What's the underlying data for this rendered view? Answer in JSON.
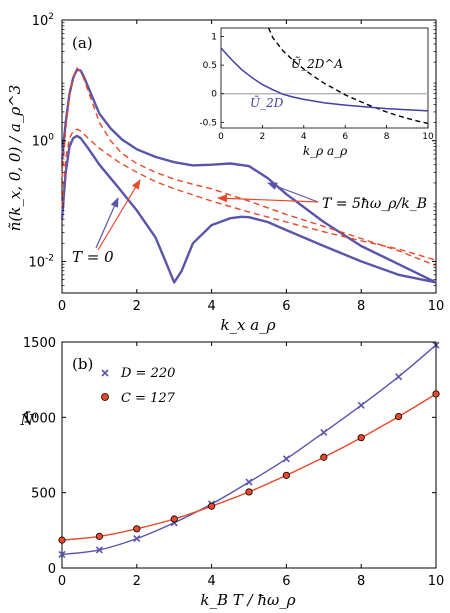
{
  "chart_data": [
    {
      "type": "line",
      "panel_label": "(a)",
      "xlabel": "k_x a_ρ",
      "ylabel": "ñ(k_x, 0, 0) / a_ρ^3",
      "xlim": [
        0,
        10
      ],
      "ylim": [
        0.003,
        100
      ],
      "yscale": "log",
      "xticks": [
        "0",
        "2",
        "4",
        "6",
        "8",
        "10"
      ],
      "yticks": [
        "10^-2",
        "10^0",
        "10^2"
      ],
      "colors": {
        "solid": "#5a55aa",
        "dashed": "#e8492a",
        "arrow_blue": "#5a55aa",
        "arrow_red": "#e8492a"
      },
      "annotations": [
        {
          "text": "T = 0"
        },
        {
          "text": "T = 5ħω_ρ/k_B"
        }
      ],
      "series": [
        {
          "style": "solid",
          "x": [
            0,
            0.1,
            0.2,
            0.3,
            0.4,
            0.5,
            0.6,
            0.8,
            1.0,
            1.3,
            1.6,
            2.0,
            2.5,
            3.0,
            3.5,
            4.0,
            4.5,
            5.0,
            5.5,
            6.0,
            7.0,
            8.0,
            9.0,
            10.0
          ],
          "y": [
            0.5,
            2.0,
            6.0,
            11.0,
            15.0,
            14.5,
            11.0,
            5.5,
            2.8,
            1.6,
            1.05,
            0.72,
            0.54,
            0.44,
            0.39,
            0.4,
            0.42,
            0.38,
            0.24,
            0.13,
            0.045,
            0.018,
            0.009,
            0.0045
          ]
        },
        {
          "style": "solid",
          "x": [
            0,
            0.1,
            0.2,
            0.3,
            0.4,
            0.5,
            0.7,
            1.0,
            1.5,
            2.0,
            2.5,
            2.8,
            3.0,
            3.2,
            3.5,
            4.0,
            4.5,
            4.8,
            5.0,
            5.5,
            6.0,
            7.0,
            8.0,
            9.0,
            10.0
          ],
          "y": [
            0.05,
            0.3,
            0.8,
            1.1,
            1.2,
            1.1,
            0.75,
            0.4,
            0.17,
            0.07,
            0.025,
            0.009,
            0.0045,
            0.007,
            0.02,
            0.04,
            0.052,
            0.055,
            0.054,
            0.045,
            0.033,
            0.018,
            0.01,
            0.006,
            0.0045
          ]
        },
        {
          "style": "dashed",
          "x": [
            0,
            0.1,
            0.2,
            0.3,
            0.4,
            0.5,
            0.6,
            0.8,
            1.0,
            1.3,
            1.6,
            2.0,
            2.5,
            3.0,
            3.5,
            4.0,
            5.0,
            6.0,
            7.0,
            8.0,
            9.0,
            10.0
          ],
          "y": [
            0.25,
            1.5,
            5.5,
            11.5,
            16.0,
            14.0,
            10.0,
            4.5,
            2.0,
            1.0,
            0.62,
            0.42,
            0.3,
            0.23,
            0.19,
            0.16,
            0.1,
            0.06,
            0.038,
            0.024,
            0.015,
            0.0085
          ]
        },
        {
          "style": "dashed",
          "x": [
            0,
            0.1,
            0.2,
            0.3,
            0.4,
            0.5,
            0.7,
            1.0,
            1.5,
            2.0,
            2.5,
            3.0,
            4.0,
            5.0,
            6.0,
            7.0,
            8.0,
            9.0,
            10.0
          ],
          "y": [
            0.08,
            0.5,
            1.1,
            1.45,
            1.55,
            1.45,
            1.1,
            0.75,
            0.45,
            0.3,
            0.21,
            0.16,
            0.1,
            0.066,
            0.045,
            0.031,
            0.022,
            0.016,
            0.0105
          ]
        }
      ],
      "inset": {
        "xlabel": "k_ρ a_ρ",
        "xlim": [
          0,
          10
        ],
        "ylim": [
          -0.6,
          1.15
        ],
        "xticks": [
          "0",
          "2",
          "4",
          "6",
          "8",
          "10"
        ],
        "yticks": [
          "-0.5",
          "0",
          "0.5",
          "1"
        ],
        "series": [
          {
            "name": "Ũ_2D^A",
            "style": "dashed",
            "color": "#000000",
            "x": [
              2.3,
              2.5,
              3,
              3.5,
              4,
              4.5,
              5,
              5.5,
              6,
              6.5,
              7,
              7.5,
              8,
              8.5,
              9,
              9.5,
              10
            ],
            "y": [
              1.15,
              0.98,
              0.75,
              0.58,
              0.43,
              0.3,
              0.18,
              0.08,
              -0.02,
              -0.1,
              -0.18,
              -0.25,
              -0.32,
              -0.38,
              -0.43,
              -0.48,
              -0.52
            ]
          },
          {
            "name": "Ũ_2D",
            "style": "solid",
            "color": "#4040a8",
            "x": [
              0,
              0.5,
              1,
              1.5,
              2,
              2.5,
              3,
              3.5,
              4,
              5,
              6,
              7,
              8,
              9,
              10
            ],
            "y": [
              0.8,
              0.6,
              0.42,
              0.28,
              0.16,
              0.07,
              -0.01,
              -0.06,
              -0.1,
              -0.16,
              -0.2,
              -0.23,
              -0.26,
              -0.28,
              -0.3
            ]
          }
        ]
      }
    },
    {
      "type": "line",
      "panel_label": "(b)",
      "xlabel": "k_B T / ħω_ρ",
      "ylabel": "N̄'",
      "xlim": [
        0,
        10
      ],
      "ylim": [
        0,
        1500
      ],
      "xticks": [
        "0",
        "2",
        "4",
        "6",
        "8",
        "10"
      ],
      "yticks": [
        "0",
        "500",
        "1000",
        "1500"
      ],
      "series": [
        {
          "name": "D = 220",
          "marker": "x",
          "color": "#5a55aa",
          "x": [
            0,
            1,
            2,
            3,
            4,
            5,
            6,
            7,
            8,
            9,
            10
          ],
          "y": [
            90,
            120,
            195,
            300,
            425,
            570,
            725,
            900,
            1080,
            1270,
            1480
          ]
        },
        {
          "name": "C = 127",
          "marker": "o",
          "color": "#e8492a",
          "x": [
            0,
            1,
            2,
            3,
            4,
            5,
            6,
            7,
            8,
            9,
            10
          ],
          "y": [
            185,
            210,
            260,
            325,
            410,
            505,
            615,
            735,
            865,
            1005,
            1155
          ]
        }
      ]
    }
  ]
}
